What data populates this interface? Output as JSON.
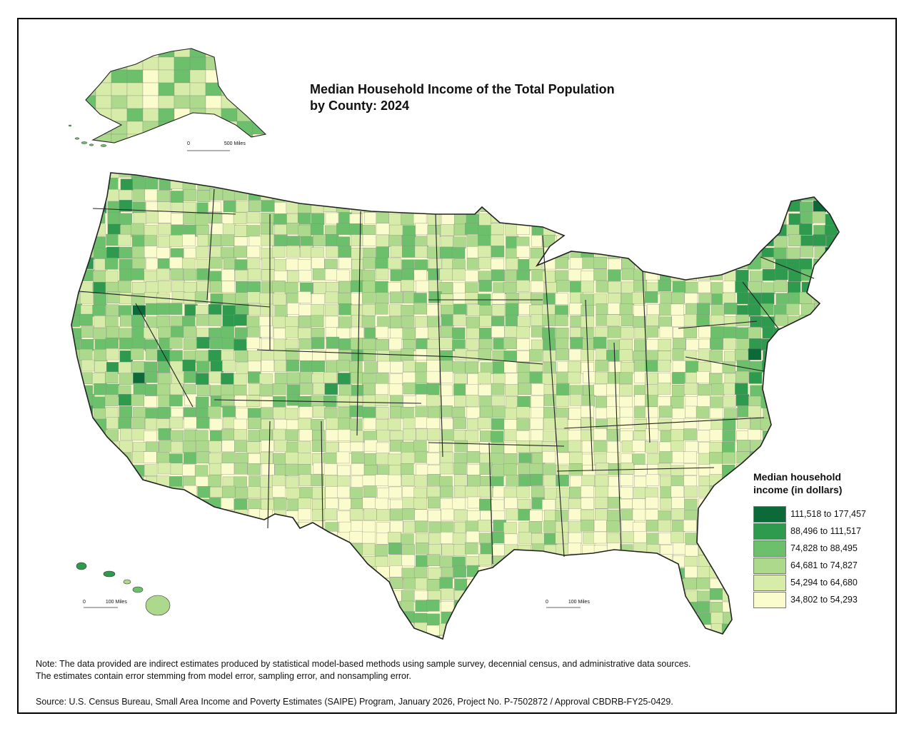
{
  "title": {
    "line1": "Median Household Income of the Total Population",
    "line2": "by County: 2024"
  },
  "legend": {
    "title_line1": "Median household",
    "title_line2": "income (in dollars)",
    "classes": [
      {
        "label": "111,518 to 177,457",
        "color": "#0b6a38"
      },
      {
        "label": "88,496 to 111,517",
        "color": "#2e9a4e"
      },
      {
        "label": "74,828 to 88,495",
        "color": "#6cc06b"
      },
      {
        "label": "64,681 to 74,827",
        "color": "#acd98c"
      },
      {
        "label": "54,294 to 64,680",
        "color": "#d8ecaa"
      },
      {
        "label": "34,802 to 54,293",
        "color": "#fbfccd"
      }
    ]
  },
  "scale_bars": {
    "alaska": {
      "zero": "0",
      "label": "500 Miles"
    },
    "hawaii": {
      "zero": "0",
      "label": "100 Miles"
    },
    "conus": {
      "zero": "0",
      "label": "100 Miles"
    }
  },
  "note": {
    "line1": "Note: The data provided are indirect estimates produced by statistical model-based methods using sample survey, decennial census, and administrative data sources.",
    "line2": "The estimates contain error stemming from model error, sampling error, and nonsampling error."
  },
  "source": "Source: U.S. Census Bureau, Small Area Income and Poverty Estimates (SAIPE) Program, January 2026,  Project No. P-7502872 / Approval CBDRB-FY25-0429.",
  "colors": {
    "border": "#000000",
    "state_lines": "#222222",
    "county_lines": "#8a8a8a"
  }
}
